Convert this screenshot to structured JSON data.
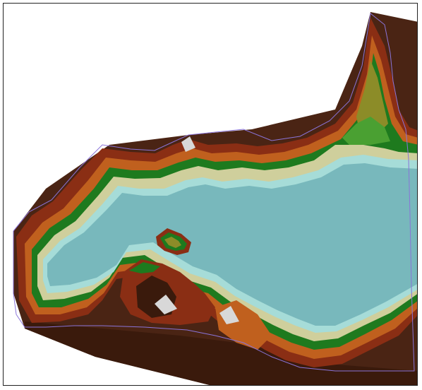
{
  "map": {
    "kind": "shaded-relief terrain rendering with lake",
    "colors": {
      "lowland_brown": "#4a2414",
      "dark_brown": "#3a1a0c",
      "red_brown": "#8a2e14",
      "orange": "#c0601e",
      "green": "#1e7a1e",
      "light_green": "#4aa032",
      "olive": "#8c8c28",
      "sand": "#cfcf9c",
      "water": "#78b8bc",
      "water_light": "#a6dcd8",
      "outline": "#8a74d8",
      "frame": "#222222"
    }
  }
}
